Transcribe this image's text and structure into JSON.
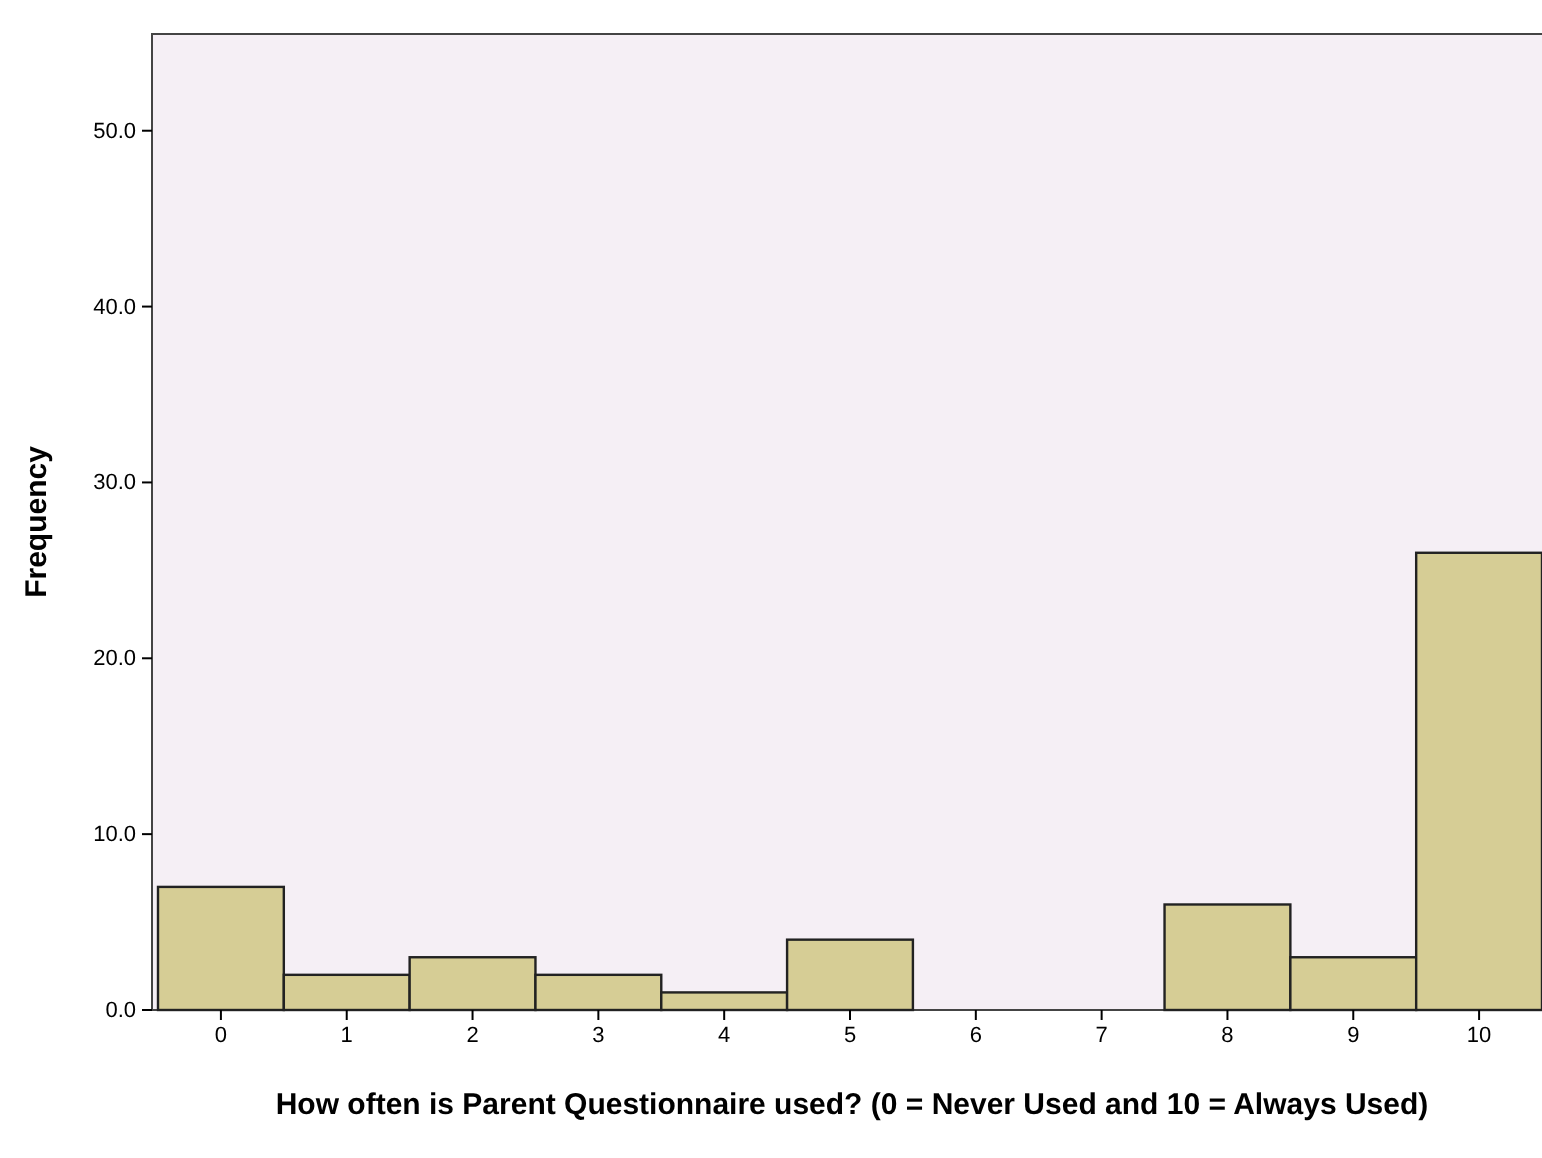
{
  "chart_data": {
    "type": "bar",
    "xlabel": "How often is Parent Questionnaire used? (0 = Never Used and 10 = Always Used)",
    "ylabel": "Frequency",
    "categories": [
      "0",
      "1",
      "2",
      "3",
      "4",
      "5",
      "6",
      "7",
      "8",
      "9",
      "10"
    ],
    "values": [
      7,
      2,
      3,
      2,
      1,
      4,
      0,
      0,
      6,
      3,
      26
    ],
    "color": "#d6cd95",
    "ylim": [
      0,
      55.5
    ],
    "yticks": [
      {
        "value": 0,
        "label": "0.0"
      },
      {
        "value": 10,
        "label": "10.0"
      },
      {
        "value": 20,
        "label": "20.0"
      },
      {
        "value": 30,
        "label": "30.0"
      },
      {
        "value": 40,
        "label": "40.0"
      },
      {
        "value": 50,
        "label": "50.0"
      }
    ],
    "grid": false
  }
}
